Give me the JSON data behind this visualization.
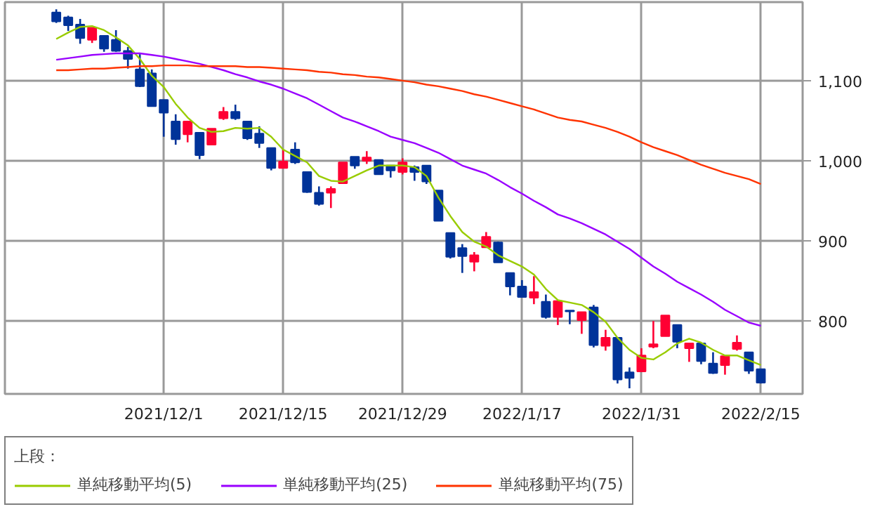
{
  "chart_data": {
    "type": "candlestick",
    "categories": [
      null,
      null,
      null,
      null,
      null,
      null,
      null,
      null,
      null,
      "2021/12/1",
      null,
      null,
      null,
      null,
      null,
      null,
      null,
      null,
      null,
      "2021/12/15",
      null,
      null,
      null,
      null,
      null,
      null,
      null,
      null,
      null,
      "2021/12/29",
      null,
      null,
      null,
      null,
      null,
      null,
      null,
      null,
      null,
      "2022/1/17",
      null,
      null,
      null,
      null,
      null,
      null,
      null,
      null,
      null,
      "2022/1/31",
      null,
      null,
      null,
      null,
      null,
      null,
      null,
      null,
      null,
      "2022/2/15"
    ],
    "ohlc": [
      [
        1185,
        1189,
        1172,
        1174
      ],
      [
        1179,
        1181,
        1162,
        1169
      ],
      [
        1170,
        1177,
        1146,
        1153
      ],
      [
        1151,
        1166,
        1147,
        1166
      ],
      [
        1156,
        1156,
        1136,
        1140
      ],
      [
        1151,
        1163,
        1136,
        1137
      ],
      [
        1137,
        1142,
        1115,
        1127
      ],
      [
        1114,
        1133,
        1092,
        1093
      ],
      [
        1109,
        1114,
        1068,
        1068
      ],
      [
        1076,
        1076,
        1030,
        1060
      ],
      [
        1049,
        1058,
        1020,
        1027
      ],
      [
        1033,
        1049,
        1023,
        1049
      ],
      [
        1035,
        1035,
        1002,
        1007
      ],
      [
        1020,
        1040,
        1020,
        1040
      ],
      [
        1053,
        1067,
        1051,
        1061
      ],
      [
        1061,
        1070,
        1051,
        1053
      ],
      [
        1049,
        1049,
        1026,
        1028
      ],
      [
        1034,
        1043,
        1016,
        1022
      ],
      [
        1016,
        1016,
        988,
        991
      ],
      [
        991,
        1014,
        991,
        999
      ],
      [
        1014,
        1023,
        996,
        998
      ],
      [
        986,
        986,
        960,
        961
      ],
      [
        960,
        968,
        944,
        946
      ],
      [
        960,
        968,
        941,
        965
      ],
      [
        972,
        998,
        972,
        998
      ],
      [
        1005,
        1005,
        990,
        994
      ],
      [
        1000,
        1012,
        996,
        1004
      ],
      [
        1001,
        1001,
        983,
        983
      ],
      [
        994,
        994,
        979,
        988
      ],
      [
        986,
        1003,
        983,
        998
      ],
      [
        992,
        994,
        975,
        986
      ],
      [
        994,
        994,
        971,
        974
      ],
      [
        963,
        963,
        925,
        925
      ],
      [
        910,
        910,
        878,
        880
      ],
      [
        891,
        896,
        860,
        881
      ],
      [
        874,
        886,
        862,
        882
      ],
      [
        892,
        911,
        892,
        905
      ],
      [
        898,
        899,
        873,
        873
      ],
      [
        860,
        860,
        832,
        843
      ],
      [
        843,
        851,
        830,
        830
      ],
      [
        829,
        856,
        821,
        836
      ],
      [
        824,
        833,
        803,
        805
      ],
      [
        805,
        825,
        795,
        825
      ],
      [
        813,
        813,
        796,
        812
      ],
      [
        801,
        811,
        784,
        811
      ],
      [
        817,
        820,
        767,
        770
      ],
      [
        769,
        789,
        763,
        779
      ],
      [
        779,
        779,
        722,
        727
      ],
      [
        736,
        742,
        716,
        729
      ],
      [
        737,
        766,
        737,
        757
      ],
      [
        768,
        800,
        766,
        771
      ],
      [
        781,
        807,
        781,
        807
      ],
      [
        795,
        795,
        766,
        774
      ],
      [
        766,
        772,
        749,
        772
      ],
      [
        772,
        772,
        746,
        750
      ],
      [
        747,
        761,
        734,
        735
      ],
      [
        745,
        756,
        733,
        756
      ],
      [
        765,
        782,
        763,
        773
      ],
      [
        761,
        761,
        734,
        738
      ],
      [
        740,
        740,
        722,
        723
      ]
    ],
    "colors": [
      "#003399",
      "#003399",
      "#003399",
      "#ff0033",
      "#003399",
      "#003399",
      "#003399",
      "#003399",
      "#003399",
      "#003399",
      "#003399",
      "#ff0033",
      "#003399",
      "#ff0033",
      "#ff0033",
      "#003399",
      "#003399",
      "#003399",
      "#003399",
      "#ff0033",
      "#003399",
      "#003399",
      "#003399",
      "#ff0033",
      "#ff0033",
      "#003399",
      "#ff0033",
      "#003399",
      "#003399",
      "#ff0033",
      "#003399",
      "#003399",
      "#003399",
      "#003399",
      "#003399",
      "#ff0033",
      "#ff0033",
      "#003399",
      "#003399",
      "#003399",
      "#ff0033",
      "#003399",
      "#ff0033",
      "#003399",
      "#ff0033",
      "#003399",
      "#ff0033",
      "#003399",
      "#003399",
      "#ff0033",
      "#ff0033",
      "#ff0033",
      "#003399",
      "#ff0033",
      "#003399",
      "#003399",
      "#ff0033",
      "#ff0033",
      "#003399",
      "#003399"
    ],
    "series": [
      {
        "name": "単純移動平均(5)",
        "type": "line",
        "color": "#99cc00",
        "values": [
          1152,
          1160,
          1167,
          1168,
          1163,
          1154,
          1144,
          1127,
          1106,
          1092,
          1071,
          1054,
          1041,
          1036,
          1037,
          1041,
          1040,
          1041,
          1030,
          1014,
          1006,
          998,
          981,
          975,
          974,
          981,
          988,
          994,
          994,
          994,
          992,
          981,
          954,
          931,
          911,
          899,
          893,
          882,
          875,
          868,
          858,
          840,
          826,
          823,
          820,
          811,
          799,
          779,
          764,
          754,
          752,
          761,
          772,
          778,
          773,
          764,
          757,
          757,
          751,
          745
        ]
      },
      {
        "name": "単純移動平均(25)",
        "type": "line",
        "color": "#9900ff",
        "values": [
          1126,
          1128,
          1130,
          1132,
          1133,
          1134,
          1134,
          1134,
          1132,
          1130,
          1127,
          1124,
          1121,
          1117,
          1113,
          1108,
          1104,
          1099,
          1095,
          1090,
          1084,
          1078,
          1070,
          1062,
          1054,
          1049,
          1043,
          1037,
          1030,
          1026,
          1022,
          1016,
          1010,
          1002,
          994,
          989,
          984,
          976,
          967,
          959,
          950,
          942,
          933,
          928,
          922,
          915,
          908,
          899,
          890,
          879,
          868,
          859,
          849,
          841,
          833,
          824,
          814,
          806,
          798,
          794
        ]
      },
      {
        "name": "単純移動平均(75)",
        "type": "line",
        "color": "#ff3300",
        "values": [
          1113,
          1113,
          1114,
          1115,
          1115,
          1116,
          1117,
          1118,
          1118,
          1119,
          1119,
          1119,
          1118,
          1118,
          1118,
          1118,
          1117,
          1117,
          1116,
          1115,
          1114,
          1113,
          1111,
          1110,
          1108,
          1107,
          1105,
          1104,
          1102,
          1100,
          1098,
          1095,
          1093,
          1090,
          1087,
          1083,
          1080,
          1076,
          1072,
          1068,
          1064,
          1059,
          1054,
          1051,
          1049,
          1045,
          1041,
          1036,
          1030,
          1023,
          1017,
          1012,
          1007,
          1001,
          995,
          990,
          985,
          981,
          977,
          971
        ]
      }
    ],
    "ylim": [
      709,
      1198
    ],
    "yticks": [
      {
        "value": 800,
        "label": "800"
      },
      {
        "value": 900,
        "label": "900"
      },
      {
        "value": 1000,
        "label": "1,000"
      },
      {
        "value": 1100,
        "label": "1,100"
      }
    ],
    "grid": true,
    "legend": "bottom",
    "legend_title": "上段："
  }
}
